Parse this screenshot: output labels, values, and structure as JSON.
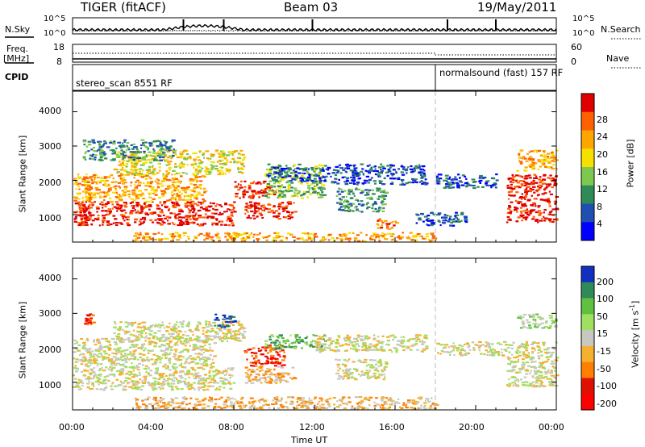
{
  "header": {
    "station": "TIGER (fitACF)",
    "beam": "Beam 03",
    "date": "19/May/2011"
  },
  "top_panels": {
    "nsky_label": "N.Sky",
    "nsky_ticks": [
      "10^5",
      "10^0"
    ],
    "nsearch_label": "N.Search",
    "nsearch_ticks": [
      "10^5",
      "10^0"
    ],
    "freq_label_line1": "Freq.",
    "freq_label_line2": "[MHz]",
    "freq_ticks": [
      "18",
      "8"
    ],
    "nave_label": "Nave",
    "nave_ticks": [
      "60",
      "0"
    ],
    "cpid_label": "CPID",
    "cpid_segments": [
      {
        "label": "stereo_scan 8551 RF",
        "start_hour": 0,
        "end_hour": 18
      },
      {
        "label": "normalsound (fast) 157 RF",
        "start_hour": 18,
        "end_hour": 24
      }
    ]
  },
  "chart_data": [
    {
      "type": "heatmap",
      "name": "power-panel",
      "ylabel": "Slant Range [km]",
      "y_ticks": [
        "1000",
        "2000",
        "3000",
        "4000"
      ],
      "ylim": [
        200,
        4600
      ],
      "xlim_hours": [
        0,
        24
      ],
      "colorbar_label": "Power [dB]",
      "colorbar_ticks": [
        "4",
        "8",
        "12",
        "16",
        "20",
        "24",
        "28"
      ],
      "colorbar_colors": [
        "#0000ff",
        "#1f4fb0",
        "#2e8b57",
        "#7ec850",
        "#f5e000",
        "#ffa500",
        "#ff6000",
        "#e00000"
      ],
      "regions": [
        {
          "t0": 0.0,
          "t1": 8.0,
          "r0": 700,
          "r1": 1400,
          "level": 7
        },
        {
          "t0": 0.0,
          "t1": 6.5,
          "r0": 1400,
          "r1": 2200,
          "level": 5
        },
        {
          "t0": 2.0,
          "t1": 8.5,
          "r0": 2200,
          "r1": 2900,
          "level": 4
        },
        {
          "t0": 0.5,
          "t1": 5.0,
          "r0": 2600,
          "r1": 3200,
          "level": 2
        },
        {
          "t0": 8.5,
          "t1": 11.0,
          "r0": 900,
          "r1": 1400,
          "level": 7
        },
        {
          "t0": 8.0,
          "t1": 10.0,
          "r0": 1500,
          "r1": 2000,
          "level": 7
        },
        {
          "t0": 9.5,
          "t1": 12.5,
          "r0": 1500,
          "r1": 2500,
          "level": 3
        },
        {
          "t0": 9.5,
          "t1": 12.5,
          "r0": 2000,
          "r1": 2400,
          "level": 1
        },
        {
          "t0": 13.0,
          "t1": 15.5,
          "r0": 1100,
          "r1": 1800,
          "level": 2
        },
        {
          "t0": 12.5,
          "t1": 17.5,
          "r0": 1900,
          "r1": 2500,
          "level": 1
        },
        {
          "t0": 15.0,
          "t1": 16.0,
          "r0": 600,
          "r1": 900,
          "level": 6
        },
        {
          "t0": 17.0,
          "t1": 19.5,
          "r0": 700,
          "r1": 1100,
          "level": 1
        },
        {
          "t0": 3.0,
          "t1": 18.0,
          "r0": 250,
          "r1": 500,
          "level": 5
        },
        {
          "t0": 18.0,
          "t1": 21.0,
          "r0": 1800,
          "r1": 2200,
          "level": 1
        },
        {
          "t0": 21.5,
          "t1": 24.0,
          "r0": 800,
          "r1": 2200,
          "level": 7
        },
        {
          "t0": 22.0,
          "t1": 24.0,
          "r0": 2300,
          "r1": 2900,
          "level": 5
        }
      ]
    },
    {
      "type": "heatmap",
      "name": "velocity-panel",
      "ylabel": "Slant Range [km]",
      "y_ticks": [
        "1000",
        "2000",
        "3000",
        "4000"
      ],
      "ylim": [
        200,
        4600
      ],
      "xlim_hours": [
        0,
        24
      ],
      "x_ticks": [
        "00:00",
        "04:00",
        "08:00",
        "12:00",
        "16:00",
        "20:00",
        "00:00"
      ],
      "xlabel": "Time UT",
      "colorbar_label": "Velocity [m s",
      "colorbar_label_sup": "-1",
      "colorbar_label_end": "]",
      "colorbar_ticks": [
        "200",
        "100",
        "50",
        "15",
        "-15",
        "-50",
        "-100",
        "-200"
      ],
      "colorbar_colors": [
        "#1030c0",
        "#2e8b57",
        "#60c040",
        "#a0e060",
        "#c8c8c0",
        "#f5b030",
        "#ff8000",
        "#e01000",
        "#ff0000"
      ],
      "regions": [
        {
          "t0": 0.0,
          "t1": 8.0,
          "r0": 800,
          "r1": 1500,
          "level": 4
        },
        {
          "t0": 0.0,
          "t1": 7.0,
          "r0": 1500,
          "r1": 2300,
          "level": 4
        },
        {
          "t0": 2.0,
          "t1": 8.5,
          "r0": 2200,
          "r1": 2800,
          "level": 4
        },
        {
          "t0": 0.5,
          "t1": 1.0,
          "r0": 2700,
          "r1": 3000,
          "level": 7
        },
        {
          "t0": 7.0,
          "t1": 8.0,
          "r0": 2600,
          "r1": 3000,
          "level": 0
        },
        {
          "t0": 8.5,
          "t1": 11.0,
          "r0": 1000,
          "r1": 1500,
          "level": 5
        },
        {
          "t0": 8.5,
          "t1": 10.5,
          "r0": 1500,
          "r1": 2100,
          "level": 7
        },
        {
          "t0": 9.5,
          "t1": 12.5,
          "r0": 2000,
          "r1": 2400,
          "level": 2
        },
        {
          "t0": 12.0,
          "t1": 17.5,
          "r0": 1900,
          "r1": 2400,
          "level": 4
        },
        {
          "t0": 13.0,
          "t1": 15.5,
          "r0": 1100,
          "r1": 1700,
          "level": 4
        },
        {
          "t0": 3.0,
          "t1": 18.0,
          "r0": 250,
          "r1": 600,
          "level": 5
        },
        {
          "t0": 18.0,
          "t1": 21.5,
          "r0": 1800,
          "r1": 2200,
          "level": 4
        },
        {
          "t0": 21.5,
          "t1": 24.0,
          "r0": 900,
          "r1": 2200,
          "level": 4
        },
        {
          "t0": 22.0,
          "t1": 24.0,
          "r0": 2600,
          "r1": 3000,
          "level": 3
        }
      ]
    }
  ]
}
